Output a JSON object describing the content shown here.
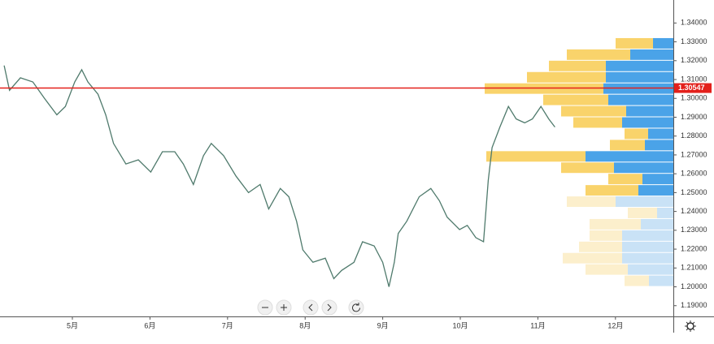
{
  "chart_data": {
    "type": "line",
    "series": [
      {
        "color": "#4f7a6c",
        "x": [
          4.12,
          4.19,
          4.33,
          4.49,
          4.64,
          4.8,
          4.91,
          5.03,
          5.12,
          5.2,
          5.33,
          5.43,
          5.53,
          5.69,
          5.85,
          6.01,
          6.16,
          6.32,
          6.43,
          6.56,
          6.69,
          6.79,
          6.95,
          7.11,
          7.27,
          7.42,
          7.53,
          7.68,
          7.79,
          7.89,
          7.97,
          8.1,
          8.26,
          8.37,
          8.47,
          8.63,
          8.74,
          8.89,
          9.0,
          9.08,
          9.15,
          9.2,
          9.31,
          9.47,
          9.62,
          9.73,
          9.83,
          9.99,
          10.09,
          10.2,
          10.3,
          10.36,
          10.41,
          10.51,
          10.62,
          10.72,
          10.83,
          10.93,
          11.04,
          11.14,
          11.22
        ],
        "values": [
          1.3174,
          1.3043,
          1.3109,
          1.3087,
          1.3,
          1.2913,
          1.2957,
          1.3087,
          1.3152,
          1.3087,
          1.3022,
          1.2913,
          1.2761,
          1.2652,
          1.2674,
          1.2609,
          1.2717,
          1.2717,
          1.2652,
          1.2543,
          1.2696,
          1.2761,
          1.2696,
          1.2587,
          1.25,
          1.2543,
          1.2413,
          1.2522,
          1.2478,
          1.2348,
          1.2196,
          1.213,
          1.2152,
          1.2043,
          1.2087,
          1.213,
          1.2239,
          1.2217,
          1.213,
          1.2,
          1.213,
          1.2283,
          1.2348,
          1.2478,
          1.2522,
          1.2457,
          1.237,
          1.2304,
          1.2326,
          1.2261,
          1.2239,
          1.2565,
          1.2739,
          1.2848,
          1.2957,
          1.2891,
          1.287,
          1.2891,
          1.2957,
          1.2891,
          1.2848
        ]
      }
    ],
    "xlim": [
      4.067,
      12.746
    ],
    "xticks": [
      {
        "value": 5,
        "label": "5月"
      },
      {
        "value": 6,
        "label": "6月"
      },
      {
        "value": 7,
        "label": "7月"
      },
      {
        "value": 8,
        "label": "8月"
      },
      {
        "value": 9,
        "label": "9月"
      },
      {
        "value": 10,
        "label": "10月"
      },
      {
        "value": 11,
        "label": "11月"
      },
      {
        "value": 12,
        "label": "12月"
      }
    ],
    "ylim": [
      1.1843,
      1.3522
    ],
    "yticks": [
      {
        "value": 1.34,
        "label": "1.34000"
      },
      {
        "value": 1.33,
        "label": "1.33000"
      },
      {
        "value": 1.32,
        "label": "1.32000"
      },
      {
        "value": 1.31,
        "label": "1.31000"
      },
      {
        "value": 1.3,
        "label": "1.30000"
      },
      {
        "value": 1.29,
        "label": "1.29000"
      },
      {
        "value": 1.28,
        "label": "1.28000"
      },
      {
        "value": 1.27,
        "label": "1.27000"
      },
      {
        "value": 1.26,
        "label": "1.26000"
      },
      {
        "value": 1.25,
        "label": "1.25000"
      },
      {
        "value": 1.24,
        "label": "1.24000"
      },
      {
        "value": 1.23,
        "label": "1.23000"
      },
      {
        "value": 1.22,
        "label": "1.22000"
      },
      {
        "value": 1.21,
        "label": "1.21000"
      },
      {
        "value": 1.2,
        "label": "1.20000"
      },
      {
        "value": 1.19,
        "label": "1.19000"
      }
    ],
    "current_price": 1.30547,
    "current_price_color": "#e3201b",
    "volume_profile": {
      "bins": [
        1.3322,
        1.3262,
        1.3202,
        1.3142,
        1.3082,
        1.3022,
        1.2962,
        1.2902,
        1.2842,
        1.2782,
        1.2722,
        1.2662,
        1.2602,
        1.2542,
        1.2482,
        1.2422,
        1.2362,
        1.2302,
        1.2242,
        1.2182,
        1.2122,
        1.2062,
        1.2002
      ],
      "faded": [
        false,
        false,
        false,
        false,
        false,
        false,
        false,
        false,
        false,
        false,
        false,
        false,
        false,
        false,
        true,
        true,
        true,
        true,
        true,
        true,
        true,
        true
      ],
      "series": [
        {
          "color": "#4aa3e8",
          "faded_color": "#c9e2f6",
          "values": [
            25,
            53,
            83,
            83,
            86,
            80,
            58,
            63,
            31,
            35,
            108,
            73,
            38,
            43,
            71,
            20,
            40,
            63,
            63,
            63,
            56,
            30
          ]
        },
        {
          "color": "#f9d36b",
          "faded_color": "#fcefcc",
          "values": [
            46,
            78,
            70,
            97,
            146,
            80,
            80,
            60,
            29,
            43,
            122,
            65,
            42,
            65,
            60,
            36,
            63,
            40,
            53,
            73,
            52,
            30
          ]
        }
      ]
    }
  }
}
